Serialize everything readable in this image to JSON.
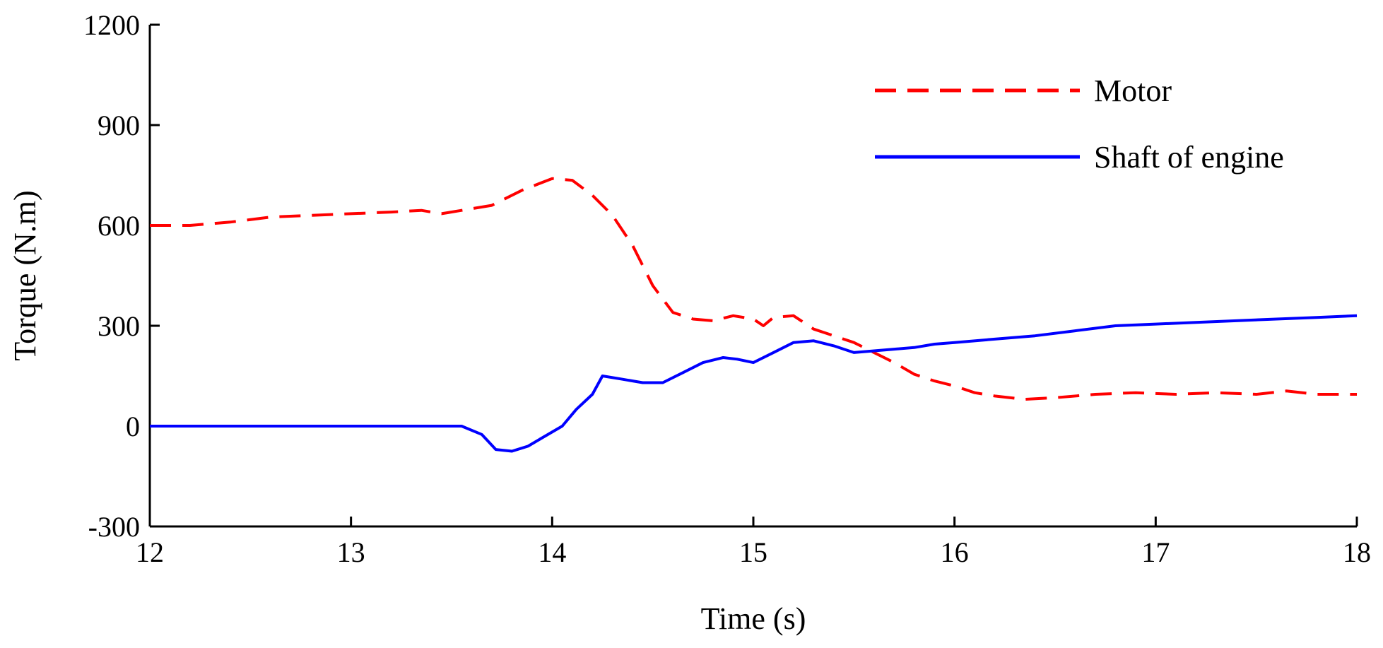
{
  "chart_data": {
    "type": "line",
    "title": "",
    "xlabel": "Time (s)",
    "ylabel": "Torque (N.m)",
    "xlim": [
      12,
      18
    ],
    "ylim": [
      -300,
      1200
    ],
    "xticks": [
      "12",
      "13",
      "14",
      "15",
      "16",
      "17",
      "18"
    ],
    "yticks": [
      "-300",
      "0",
      "300",
      "600",
      "900",
      "1200"
    ],
    "grid": false,
    "legend_position": "top-right",
    "series": [
      {
        "name": "Motor",
        "color": "#ff0000",
        "style": "dashed",
        "x": [
          12.0,
          12.2,
          12.4,
          12.6,
          12.8,
          13.0,
          13.2,
          13.35,
          13.45,
          13.55,
          13.7,
          13.85,
          14.0,
          14.1,
          14.2,
          14.3,
          14.4,
          14.5,
          14.6,
          14.7,
          14.8,
          14.9,
          15.0,
          15.05,
          15.1,
          15.2,
          15.3,
          15.4,
          15.5,
          15.6,
          15.7,
          15.8,
          15.9,
          16.0,
          16.1,
          16.2,
          16.35,
          16.5,
          16.7,
          16.9,
          17.1,
          17.3,
          17.5,
          17.65,
          17.8,
          18.0
        ],
        "y": [
          600,
          600,
          610,
          625,
          630,
          635,
          640,
          645,
          635,
          645,
          660,
          705,
          740,
          735,
          690,
          630,
          540,
          420,
          340,
          320,
          315,
          330,
          320,
          300,
          325,
          330,
          290,
          270,
          250,
          220,
          190,
          155,
          135,
          120,
          100,
          90,
          80,
          85,
          95,
          100,
          95,
          100,
          95,
          105,
          95,
          95
        ]
      },
      {
        "name": "Shaft of engine",
        "color": "#0000ff",
        "style": "solid",
        "x": [
          12.0,
          12.5,
          13.0,
          13.4,
          13.55,
          13.65,
          13.72,
          13.8,
          13.88,
          13.95,
          14.05,
          14.12,
          14.2,
          14.25,
          14.35,
          14.45,
          14.55,
          14.65,
          14.75,
          14.85,
          14.92,
          15.0,
          15.1,
          15.2,
          15.3,
          15.4,
          15.5,
          15.6,
          15.7,
          15.8,
          15.9,
          16.0,
          16.2,
          16.4,
          16.6,
          16.8,
          17.0,
          17.2,
          17.4,
          17.6,
          17.8,
          18.0
        ],
        "y": [
          0,
          0,
          0,
          0,
          0,
          -25,
          -70,
          -75,
          -60,
          -35,
          0,
          50,
          95,
          150,
          140,
          130,
          130,
          160,
          190,
          205,
          200,
          190,
          220,
          250,
          255,
          240,
          220,
          225,
          230,
          235,
          245,
          250,
          260,
          270,
          285,
          300,
          305,
          310,
          315,
          320,
          325,
          330
        ]
      }
    ]
  }
}
